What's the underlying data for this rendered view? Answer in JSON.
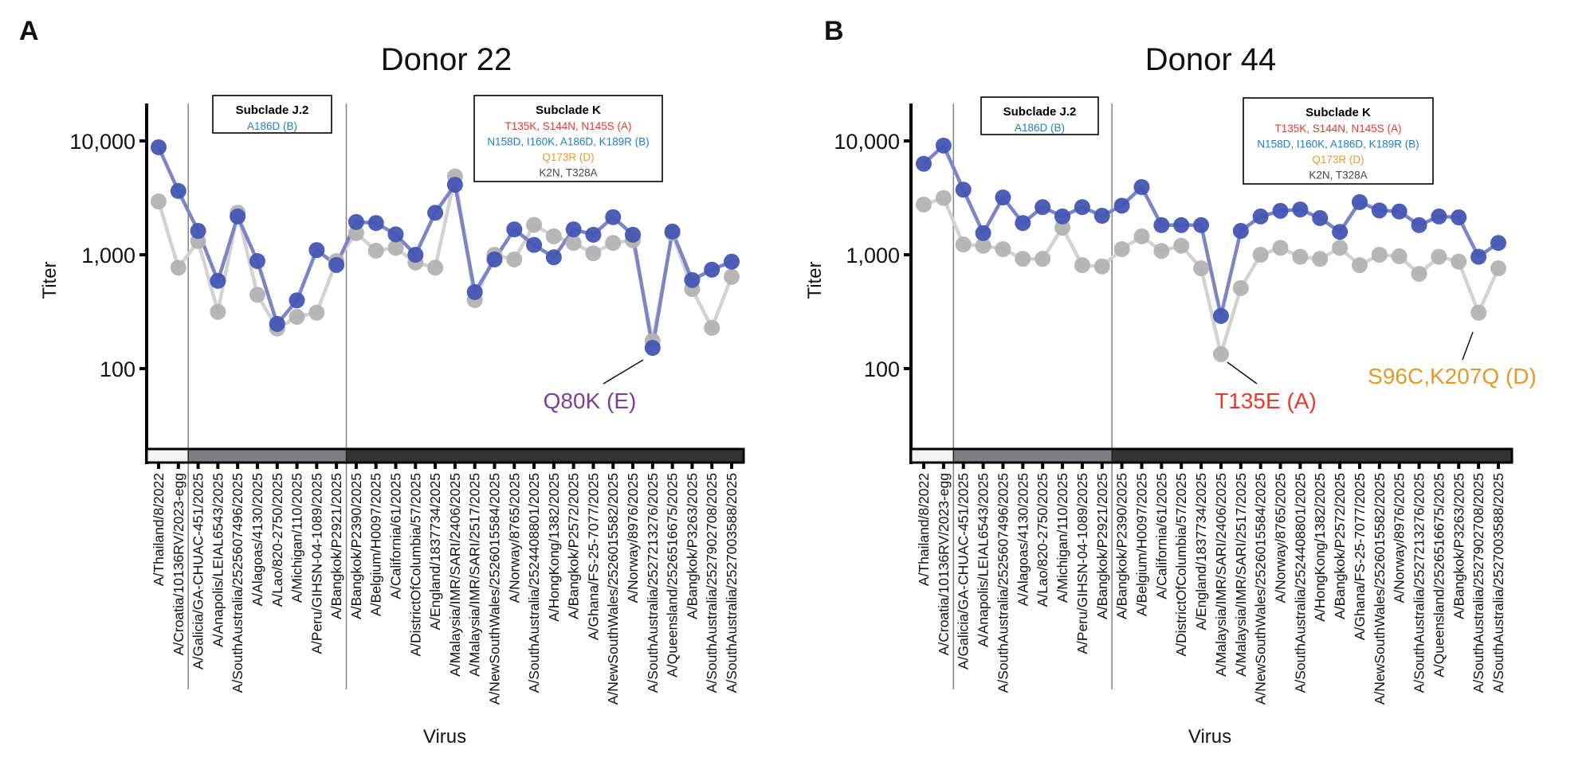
{
  "figure": {
    "panels": [
      {
        "letter": "A",
        "title": "Donor 22"
      },
      {
        "letter": "B",
        "title": "Donor 44"
      }
    ]
  },
  "colors": {
    "series_blue_dot": "#4355b2",
    "series_blue_line": "#7b85c6",
    "series_gray_dot": "#b3b3b3",
    "series_gray_line": "#d2d2d2",
    "group_ref": "#f2f3f5",
    "group_j2": "#7d7e83",
    "group_k": "#333333",
    "mut_A": "#e8392f",
    "mut_B": "#1f7ec4",
    "mut_D": "#e09a30",
    "mut_other": "#444444",
    "mut_E": "#7e3c9c"
  },
  "chart_data": [
    {
      "type": "line",
      "title": "Donor 22",
      "panel": "A",
      "xlabel": "Virus",
      "ylabel": "Titer",
      "yscale": "log",
      "ylim": [
        20,
        20000
      ],
      "yticks": [
        100,
        1000,
        10000
      ],
      "ytick_labels": [
        "100",
        "1,000",
        "10,000"
      ],
      "grid": false,
      "categories": [
        "A/Thailand/8/2022",
        "A/Croatia/10136RV/2023-egg",
        "A/Galicia/GA-CHUAC-451/2025",
        "A/Anapolis/LEIAL6543/2025",
        "A/SouthAustralia/2525607496/2025",
        "A/Alagoas/4130/2025",
        "A/Lao/820-2750/2025",
        "A/Michigan/110/2025",
        "A/Peru/GIHSN-04-1089/2025",
        "A/Bangkok/P2921/2025",
        "A/Bangkok/P2390/2025",
        "A/Belgium/H0097/2025",
        "A/California/61/2025",
        "A/DistrictOfColumbia/57/2025",
        "A/England/1837734/2025",
        "A/Malaysia/IMR/SARI/2406/2025",
        "A/Malaysia/IMR/SARI/2517/2025",
        "A/NewSouthWales/2526015584/2025",
        "A/Norway/8765/2025",
        "A/SouthAustralia/2524408801/2025",
        "A/HongKong/1382/2025",
        "A/Bangkok/P2572/2025",
        "A/Ghana/FS-25-7077/2025",
        "A/NewSouthWales/2526015582/2025",
        "A/Norway/8976/2025",
        "A/SouthAustralia/2527213276/2025",
        "A/Queensland/2526516675/2025",
        "A/Bangkok/P3263/2025",
        "A/SouthAustralia/2527902708/2025",
        "A/SouthAustralia/2527003588/2025"
      ],
      "groups": [
        {
          "name": "reference",
          "start": 0,
          "end": 1
        },
        {
          "name": "Subclade J.2",
          "start": 2,
          "end": 9
        },
        {
          "name": "Subclade K",
          "start": 10,
          "end": 29
        }
      ],
      "series": [
        {
          "name": "gray",
          "values": [
            2940,
            770,
            1320,
            315,
            2340,
            445,
            225,
            285,
            310,
            880,
            1550,
            1085,
            1150,
            855,
            770,
            4880,
            400,
            1000,
            910,
            1830,
            1450,
            1270,
            1030,
            1270,
            1340,
            175,
            1550,
            500,
            228,
            640
          ]
        },
        {
          "name": "blue",
          "values": [
            8800,
            3630,
            1620,
            590,
            2170,
            880,
            247,
            398,
            1100,
            813,
            1940,
            1900,
            1510,
            1000,
            2340,
            4120,
            470,
            910,
            1670,
            1220,
            950,
            1670,
            1500,
            2140,
            1500,
            152,
            1600,
            600,
            740,
            870
          ]
        }
      ],
      "boxes": [
        {
          "title": "Subclade J.2",
          "lines": [
            {
              "text": "A186D (B)",
              "color_key": "mut_B"
            }
          ]
        },
        {
          "title": "Subclade K",
          "lines": [
            {
              "text": "T135K, S144N, N145S (A)",
              "color_key": "mut_A"
            },
            {
              "text": "N158D, I160K, A186D, K189R (B)",
              "color_key": "mut_B"
            },
            {
              "text": "Q173R (D)",
              "color_key": "mut_D"
            },
            {
              "text": "K2N, T328A",
              "color_key": "mut_other"
            }
          ]
        }
      ],
      "annotations": [
        {
          "text": "Q80K (E)",
          "point_index": 25,
          "series": "blue",
          "color_key": "mut_E"
        }
      ]
    },
    {
      "type": "line",
      "title": "Donor 44",
      "panel": "B",
      "xlabel": "Virus",
      "ylabel": "Titer",
      "yscale": "log",
      "ylim": [
        20,
        20000
      ],
      "yticks": [
        100,
        1000,
        10000
      ],
      "ytick_labels": [
        "100",
        "1,000",
        "10,000"
      ],
      "grid": false,
      "categories": [
        "A/Thailand/8/2022",
        "A/Croatia/10136RV/2023-egg",
        "A/Galicia/GA-CHUAC-451/2025",
        "A/Anapolis/LEIAL6543/2025",
        "A/SouthAustralia/2525607496/2025",
        "A/Alagoas/4130/2025",
        "A/Lao/820-2750/2025",
        "A/Michigan/110/2025",
        "A/Peru/GIHSN-04-1089/2025",
        "A/Bangkok/P2921/2025",
        "A/Bangkok/P2390/2025",
        "A/Belgium/H0097/2025",
        "A/California/61/2025",
        "A/DistrictOfColumbia/57/2025",
        "A/England/1837734/2025",
        "A/Malaysia/IMR/SARI/2406/2025",
        "A/Malaysia/IMR/SARI/2517/2025",
        "A/NewSouthWales/2526015584/2025",
        "A/Norway/8765/2025",
        "A/SouthAustralia/2524408801/2025",
        "A/HongKong/1382/2025",
        "A/Bangkok/P2572/2025",
        "A/Ghana/FS-25-7077/2025",
        "A/NewSouthWales/2526015582/2025",
        "A/Norway/8976/2025",
        "A/SouthAustralia/2527213276/2025",
        "A/Queensland/2526516675/2025",
        "A/Bangkok/P3263/2025",
        "A/SouthAustralia/2527902708/2025",
        "A/SouthAustralia/2527003588/2025"
      ],
      "groups": [
        {
          "name": "reference",
          "start": 0,
          "end": 1
        },
        {
          "name": "Subclade J.2",
          "start": 2,
          "end": 9
        },
        {
          "name": "Subclade K",
          "start": 10,
          "end": 29
        }
      ],
      "series": [
        {
          "name": "gray",
          "values": [
            2760,
            3150,
            1230,
            1200,
            1120,
            920,
            920,
            1730,
            810,
            790,
            1120,
            1450,
            1080,
            1200,
            760,
            134,
            510,
            1000,
            1150,
            960,
            920,
            1150,
            810,
            1000,
            970,
            680,
            960,
            870,
            310,
            760
          ]
        },
        {
          "name": "blue",
          "values": [
            6300,
            9100,
            3730,
            1550,
            3190,
            1900,
            2620,
            2170,
            2620,
            2200,
            2700,
            3930,
            1820,
            1820,
            1820,
            290,
            1620,
            2170,
            2430,
            2500,
            2100,
            1590,
            2900,
            2450,
            2400,
            1820,
            2170,
            2130,
            960,
            1270
          ]
        }
      ],
      "boxes": [
        {
          "title": "Subclade J.2",
          "lines": [
            {
              "text": "A186D (B)",
              "color_key": "mut_B"
            }
          ]
        },
        {
          "title": "Subclade K",
          "lines": [
            {
              "text": "T135K, S144N, N145S (A)",
              "color_key": "mut_A"
            },
            {
              "text": "N158D, I160K, A186D, K189R (B)",
              "color_key": "mut_B"
            },
            {
              "text": "Q173R (D)",
              "color_key": "mut_D"
            },
            {
              "text": "K2N, T328A",
              "color_key": "mut_other"
            }
          ]
        }
      ],
      "annotations": [
        {
          "text": "T135E (A)",
          "point_index": 15,
          "series": "gray",
          "color_key": "mut_A"
        },
        {
          "text": "S96C,K207Q (D)",
          "point_index": 28,
          "series": "gray",
          "color_key": "mut_D"
        }
      ]
    }
  ]
}
